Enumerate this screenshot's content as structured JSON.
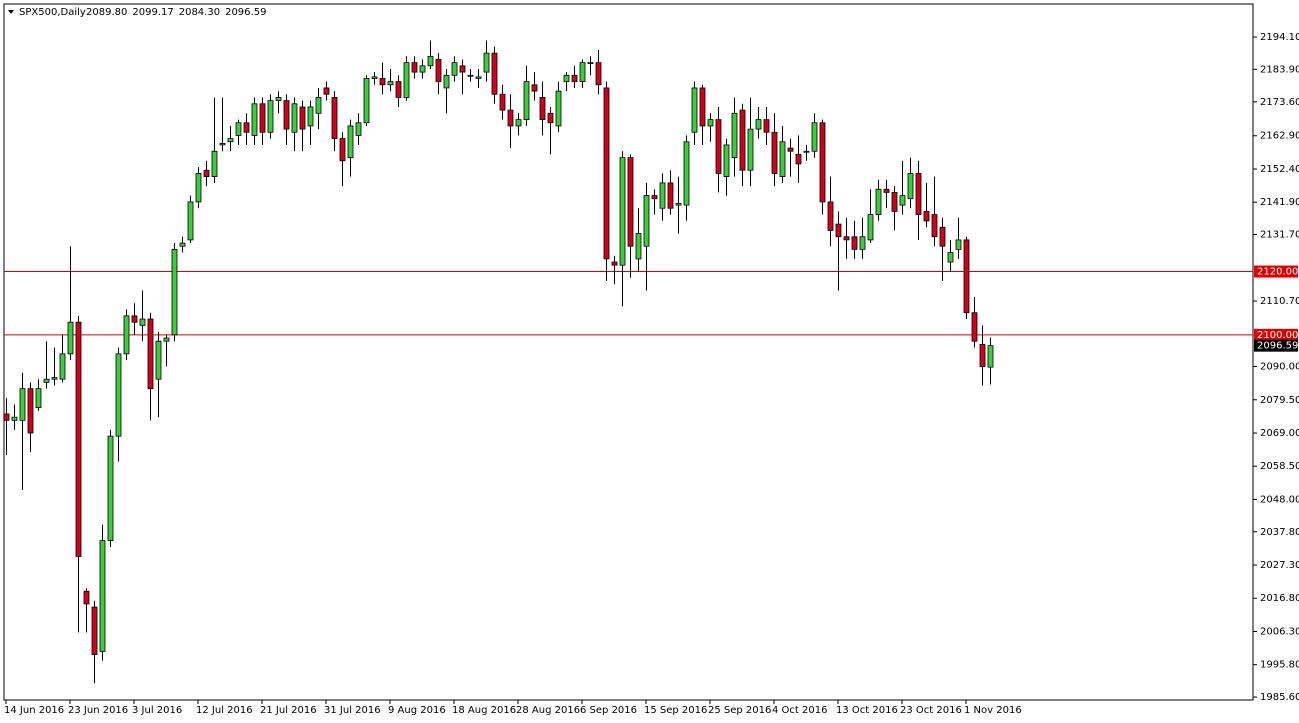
{
  "chart_data": {
    "type": "candlestick",
    "title": "SPX500,Daily",
    "header_values": [
      "2089.80",
      "2099.17",
      "2084.30",
      "2096.59"
    ],
    "up_color": "#3ccd3c",
    "down_color": "#d0021b",
    "categories": [
      "14 Jun 2016",
      null,
      null,
      null,
      null,
      null,
      null,
      null,
      "23 Jun 2016",
      null,
      null,
      null,
      null,
      null,
      null,
      null,
      "3 Jul 2016",
      null,
      null,
      null,
      null,
      null,
      null,
      null,
      "12 Jul 2016",
      null,
      null,
      null,
      null,
      null,
      null,
      null,
      "21 Jul 2016",
      null,
      null,
      null,
      null,
      null,
      null,
      null,
      "31 Jul 2016",
      null,
      null,
      null,
      null,
      null,
      null,
      null,
      "9 Aug 2016",
      null,
      null,
      null,
      null,
      null,
      null,
      null,
      "18 Aug 2016",
      null,
      null,
      null,
      null,
      null,
      null,
      null,
      "28 Aug 2016",
      null,
      null,
      null,
      null,
      null,
      null,
      null,
      "6 Sep 2016",
      null,
      null,
      null,
      null,
      null,
      null,
      null,
      "15 Sep 2016",
      null,
      null,
      null,
      null,
      null,
      null,
      null,
      "25 Sep 2016",
      null,
      null,
      null,
      null,
      null,
      null,
      null,
      "4 Oct 2016",
      null,
      null,
      null,
      null,
      null,
      null,
      null,
      "13 Oct 2016",
      null,
      null,
      null,
      null,
      null,
      null,
      null,
      "23 Oct 2016",
      null,
      null,
      null,
      null,
      null,
      null,
      null,
      "1 Nov 2016",
      null,
      null,
      null
    ],
    "ohlc": [
      [
        2075,
        2080,
        2062,
        2073
      ],
      [
        2073,
        2078,
        2070,
        2074
      ],
      [
        2073,
        2088,
        2051,
        2083
      ],
      [
        2083,
        2085,
        2063,
        2069
      ],
      [
        2077,
        2086,
        2076,
        2083
      ],
      [
        2085,
        2098,
        2083,
        2086
      ],
      [
        2086,
        2096,
        2084,
        2086.5
      ],
      [
        2086,
        2100,
        2085,
        2094
      ],
      [
        2094,
        2128,
        2092,
        2104
      ],
      [
        2104,
        2106,
        2006,
        2030
      ],
      [
        2019,
        2020,
        2006,
        2015
      ],
      [
        2014,
        2016,
        1990,
        1999
      ],
      [
        2000,
        2040,
        1997,
        2035
      ],
      [
        2035,
        2070,
        2033,
        2068
      ],
      [
        2068,
        2096,
        2060,
        2094
      ],
      [
        2094,
        2108,
        2092,
        2106
      ],
      [
        2106,
        2110,
        2100,
        2104
      ],
      [
        2103,
        2114,
        2098,
        2105
      ],
      [
        2105,
        2107,
        2073,
        2083
      ],
      [
        2086,
        2101,
        2074,
        2098
      ],
      [
        2098,
        2100,
        2090,
        2099
      ],
      [
        2100,
        2129,
        2098,
        2127
      ],
      [
        2128,
        2131,
        2126,
        2129
      ],
      [
        2130,
        2144,
        2129,
        2142
      ],
      [
        2142,
        2153,
        2140,
        2151
      ],
      [
        2152,
        2155,
        2147,
        2150
      ],
      [
        2150,
        2175,
        2148,
        2158
      ],
      [
        2160,
        2175,
        2158,
        2160.5
      ],
      [
        2161,
        2166,
        2158,
        2162
      ],
      [
        2163,
        2168,
        2160,
        2167
      ],
      [
        2167,
        2170,
        2160,
        2164
      ],
      [
        2163,
        2175,
        2160,
        2173
      ],
      [
        2173,
        2175,
        2160,
        2164
      ],
      [
        2164,
        2176,
        2162,
        2174
      ],
      [
        2174,
        2177,
        2170,
        2175
      ],
      [
        2174,
        2176,
        2160,
        2165
      ],
      [
        2164,
        2175,
        2158,
        2173
      ],
      [
        2172,
        2174,
        2158,
        2165
      ],
      [
        2166,
        2174,
        2160,
        2172
      ],
      [
        2170,
        2178,
        2165,
        2175
      ],
      [
        2178,
        2180,
        2174,
        2176
      ],
      [
        2175,
        2177,
        2158,
        2162
      ],
      [
        2162,
        2164,
        2147,
        2155
      ],
      [
        2156,
        2168,
        2150,
        2166
      ],
      [
        2163,
        2170,
        2160,
        2167
      ],
      [
        2167,
        2182,
        2166,
        2181
      ],
      [
        2181,
        2183,
        2179,
        2181.5
      ],
      [
        2181,
        2186,
        2176,
        2179
      ],
      [
        2179,
        2184,
        2177,
        2180
      ],
      [
        2180,
        2182,
        2172,
        2175
      ],
      [
        2175,
        2188,
        2174,
        2186
      ],
      [
        2186,
        2188,
        2181,
        2183
      ],
      [
        2183,
        2187,
        2181,
        2185
      ],
      [
        2185,
        2193,
        2184,
        2188
      ],
      [
        2187,
        2189,
        2176,
        2180
      ],
      [
        2178,
        2184,
        2170,
        2182
      ],
      [
        2182,
        2188,
        2180,
        2186
      ],
      [
        2185,
        2187,
        2176,
        2183
      ],
      [
        2182,
        2184,
        2180,
        2182
      ],
      [
        2181,
        2184,
        2178,
        2181.5
      ],
      [
        2183,
        2193,
        2180,
        2189
      ],
      [
        2189,
        2191,
        2173,
        2176
      ],
      [
        2176,
        2179,
        2168,
        2171
      ],
      [
        2171,
        2176,
        2159,
        2166
      ],
      [
        2166,
        2170,
        2163,
        2168
      ],
      [
        2168,
        2185,
        2166,
        2180
      ],
      [
        2179,
        2183,
        2174,
        2177
      ],
      [
        2175,
        2180,
        2163,
        2168
      ],
      [
        2170,
        2172,
        2157,
        2167
      ],
      [
        2166,
        2180,
        2164,
        2177
      ],
      [
        2180,
        2183,
        2177,
        2182
      ],
      [
        2182,
        2185,
        2178,
        2180
      ],
      [
        2180,
        2187,
        2178,
        2186
      ],
      [
        2186,
        2188,
        2182,
        2186
      ],
      [
        2186,
        2190,
        2176,
        2179
      ],
      [
        2178,
        2180,
        2117,
        2124
      ],
      [
        2123,
        2125,
        2116,
        2122
      ],
      [
        2122,
        2158,
        2109,
        2156
      ],
      [
        2156,
        2157,
        2118,
        2128
      ],
      [
        2124,
        2140,
        2120,
        2132
      ],
      [
        2128,
        2148,
        2114,
        2144
      ],
      [
        2144,
        2146,
        2138,
        2143
      ],
      [
        2140,
        2151,
        2136,
        2148
      ],
      [
        2148,
        2152,
        2138,
        2140
      ],
      [
        2141,
        2150,
        2132,
        2141.5
      ],
      [
        2141,
        2163,
        2136,
        2161
      ],
      [
        2164,
        2180,
        2160,
        2178
      ],
      [
        2178,
        2179,
        2160,
        2166
      ],
      [
        2166,
        2170,
        2161,
        2168
      ],
      [
        2168,
        2172,
        2145,
        2151
      ],
      [
        2150,
        2162,
        2144,
        2160
      ],
      [
        2156,
        2175,
        2150,
        2170
      ],
      [
        2171,
        2173,
        2147,
        2152
      ],
      [
        2152,
        2175,
        2147,
        2165
      ],
      [
        2165,
        2172,
        2162,
        2168
      ],
      [
        2168,
        2172,
        2160,
        2164
      ],
      [
        2164,
        2170,
        2147,
        2151
      ],
      [
        2150,
        2166,
        2148,
        2161
      ],
      [
        2159,
        2162,
        2150,
        2158
      ],
      [
        2157,
        2163,
        2148,
        2154
      ],
      [
        2158,
        2160,
        2155,
        2158
      ],
      [
        2158,
        2170,
        2156,
        2167
      ],
      [
        2167,
        2168,
        2138,
        2142
      ],
      [
        2142,
        2150,
        2128,
        2133
      ],
      [
        2135,
        2139,
        2114,
        2131
      ],
      [
        2131,
        2137,
        2124,
        2130
      ],
      [
        2131,
        2136,
        2124,
        2127
      ],
      [
        2127,
        2137,
        2124,
        2131
      ],
      [
        2130,
        2146,
        2129,
        2138
      ],
      [
        2138,
        2149,
        2136,
        2146
      ],
      [
        2146,
        2149,
        2140,
        2145
      ],
      [
        2145,
        2147,
        2133,
        2139
      ],
      [
        2141,
        2155,
        2138,
        2144
      ],
      [
        2143,
        2156,
        2140,
        2151
      ],
      [
        2151,
        2155,
        2130,
        2138
      ],
      [
        2139,
        2148,
        2134,
        2136
      ],
      [
        2138,
        2150,
        2128,
        2131
      ],
      [
        2134,
        2137,
        2117,
        2128
      ],
      [
        2123,
        2130,
        2120,
        2126
      ],
      [
        2127,
        2137,
        2124,
        2130
      ],
      [
        2130,
        2131,
        2105,
        2107
      ],
      [
        2107,
        2112,
        2096,
        2098
      ],
      [
        2097,
        2103,
        2084,
        2090
      ],
      [
        2089.8,
        2099.17,
        2084.3,
        2096.59
      ]
    ],
    "ylim": [
      1984.65,
      2204.52
    ],
    "yticks": [
      {
        "value": 2194.1,
        "label": "2194.10"
      },
      {
        "value": 2183.9,
        "label": "2183.90"
      },
      {
        "value": 2173.6,
        "label": "2173.60"
      },
      {
        "value": 2162.9,
        "label": "2162.90"
      },
      {
        "value": 2152.4,
        "label": "2152.40"
      },
      {
        "value": 2141.9,
        "label": "2141.90"
      },
      {
        "value": 2131.7,
        "label": "2131.70"
      },
      {
        "value": 2110.7,
        "label": "2110.70"
      },
      {
        "value": 2090.0,
        "label": "2090.00"
      },
      {
        "value": 2079.5,
        "label": "2079.50"
      },
      {
        "value": 2069.0,
        "label": "2069.00"
      },
      {
        "value": 2058.5,
        "label": "2058.50"
      },
      {
        "value": 2048.0,
        "label": "2048.00"
      },
      {
        "value": 2037.8,
        "label": "2037.80"
      },
      {
        "value": 2027.3,
        "label": "2027.30"
      },
      {
        "value": 2016.8,
        "label": "2016.80"
      },
      {
        "value": 2006.3,
        "label": "2006.30"
      },
      {
        "value": 1995.8,
        "label": "1995.80"
      },
      {
        "value": 1985.6,
        "label": "1985.60"
      }
    ],
    "levels": [
      {
        "value": 2120,
        "label": "2120.00",
        "color": "#e00000"
      },
      {
        "value": 2100,
        "label": "2100.00",
        "color": "#e00000"
      }
    ],
    "current_price": {
      "value": 2096.59,
      "label": "2096.59",
      "color": "#000000"
    }
  }
}
